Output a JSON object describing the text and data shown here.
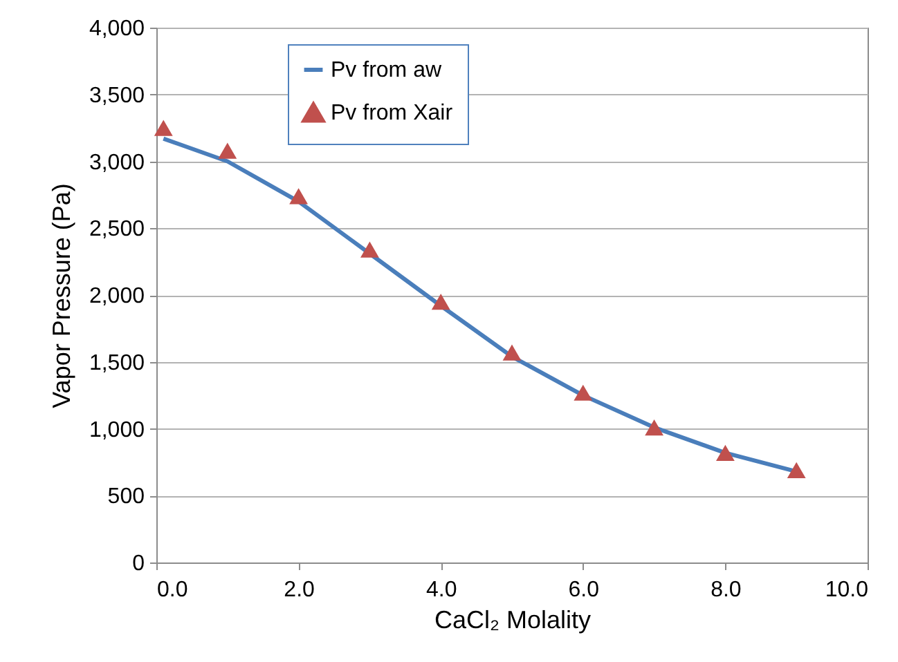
{
  "chart_data": {
    "type": "line",
    "xlabel": "CaCl₂ Molality",
    "ylabel": "Vapor Pressure (Pa)",
    "x": [
      0.1,
      1,
      2,
      3,
      4,
      5,
      6,
      7,
      8,
      9
    ],
    "xlim": [
      0,
      10
    ],
    "xticks": [
      {
        "value": 0,
        "label": "0.0"
      },
      {
        "value": 2,
        "label": "2.0"
      },
      {
        "value": 4,
        "label": "4.0"
      },
      {
        "value": 6,
        "label": "6.0"
      },
      {
        "value": 8,
        "label": "8.0"
      },
      {
        "value": 10,
        "label": "10.0"
      }
    ],
    "ylim": [
      0,
      4000
    ],
    "yticks": [
      0,
      500,
      {
        "value": 1000,
        "label": "1,000"
      },
      {
        "value": 1500,
        "label": "1,500"
      },
      {
        "value": 2000,
        "label": "2,000"
      },
      {
        "value": 2500,
        "label": "2,500"
      },
      {
        "value": 3000,
        "label": "3,000"
      },
      {
        "value": 3500,
        "label": "3,500"
      },
      {
        "value": 4000,
        "label": "4,000"
      }
    ],
    "grid": "y",
    "legend": "top",
    "series": [
      {
        "name": "Pv from aw",
        "type": "line",
        "color": "#4a7ebb",
        "marker": "none",
        "line_style": "solid",
        "values": [
          3170,
          3000,
          2700,
          2310,
          1920,
          1540,
          1250,
          1010,
          820,
          680
        ]
      },
      {
        "name": "Pv from Xair",
        "type": "scatter",
        "color": "#c0504d",
        "marker": "triangle",
        "values": [
          3250,
          3080,
          2740,
          2340,
          1950,
          1570,
          1270,
          1010,
          820,
          690
        ]
      }
    ]
  }
}
